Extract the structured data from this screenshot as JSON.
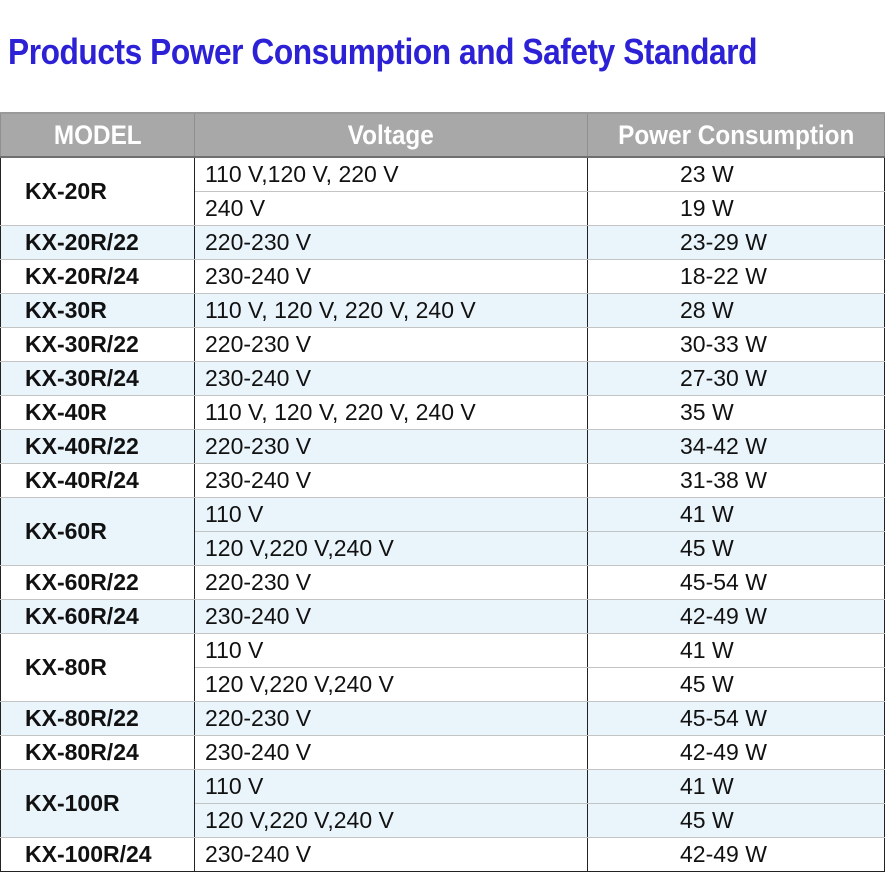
{
  "title": "Products Power Consumption and  Safety Standard",
  "headers": {
    "model": "MODEL",
    "voltage": "Voltage",
    "power": "Power Consumption"
  },
  "rows": [
    {
      "model": "KX-20R",
      "entries": [
        {
          "voltage": "110 V,120 V, 220 V",
          "power": "23 W"
        },
        {
          "voltage": "240 V",
          "power": "19 W"
        }
      ]
    },
    {
      "model": "KX-20R/22",
      "entries": [
        {
          "voltage": "220-230 V",
          "power": "23-29 W"
        }
      ]
    },
    {
      "model": "KX-20R/24",
      "entries": [
        {
          "voltage": "230-240 V",
          "power": "18-22 W"
        }
      ]
    },
    {
      "model": "KX-30R",
      "entries": [
        {
          "voltage": "110 V, 120 V, 220 V, 240 V",
          "power": "28 W"
        }
      ]
    },
    {
      "model": "KX-30R/22",
      "entries": [
        {
          "voltage": "220-230 V",
          "power": "30-33 W"
        }
      ]
    },
    {
      "model": "KX-30R/24",
      "entries": [
        {
          "voltage": "230-240 V",
          "power": "27-30 W"
        }
      ]
    },
    {
      "model": "KX-40R",
      "entries": [
        {
          "voltage": "110 V, 120 V, 220 V, 240 V",
          "power": "35 W"
        }
      ]
    },
    {
      "model": "KX-40R/22",
      "entries": [
        {
          "voltage": "220-230 V",
          "power": "34-42 W"
        }
      ]
    },
    {
      "model": "KX-40R/24",
      "entries": [
        {
          "voltage": "230-240 V",
          "power": "31-38 W"
        }
      ]
    },
    {
      "model": "KX-60R",
      "entries": [
        {
          "voltage": "110 V",
          "power": "41 W"
        },
        {
          "voltage": "120 V,220 V,240 V",
          "power": "45 W"
        }
      ]
    },
    {
      "model": "KX-60R/22",
      "entries": [
        {
          "voltage": "220-230 V",
          "power": "45-54 W"
        }
      ]
    },
    {
      "model": "KX-60R/24",
      "entries": [
        {
          "voltage": "230-240 V",
          "power": "42-49 W"
        }
      ]
    },
    {
      "model": "KX-80R",
      "entries": [
        {
          "voltage": "110 V",
          "power": "41 W"
        },
        {
          "voltage": "120 V,220 V,240 V",
          "power": "45 W"
        }
      ]
    },
    {
      "model": "KX-80R/22",
      "entries": [
        {
          "voltage": "220-230 V",
          "power": "45-54 W"
        }
      ]
    },
    {
      "model": "KX-80R/24",
      "entries": [
        {
          "voltage": "230-240 V",
          "power": "42-49 W"
        }
      ]
    },
    {
      "model": "KX-100R",
      "entries": [
        {
          "voltage": "110 V",
          "power": "41 W"
        },
        {
          "voltage": "120 V,220 V,240 V",
          "power": "45 W"
        }
      ]
    },
    {
      "model": "KX-100R/24",
      "entries": [
        {
          "voltage": "230-240 V",
          "power": "42-49 W"
        }
      ]
    }
  ]
}
